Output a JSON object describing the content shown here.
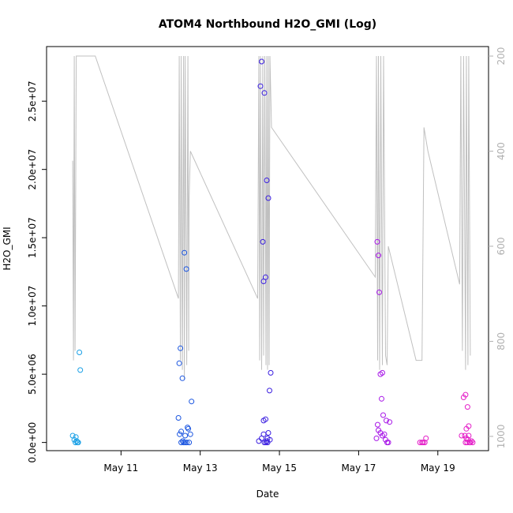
{
  "chart_data": {
    "type": "scatter",
    "title": "ATOM4 Northbound H2O_GMI (Log)",
    "xlabel": "Date",
    "ylabel": "H2O_GMI",
    "x_ticks": [
      {
        "day": 11,
        "label": "May 11"
      },
      {
        "day": 13,
        "label": "May 13"
      },
      {
        "day": 15,
        "label": "May 15"
      },
      {
        "day": 17,
        "label": "May 17"
      },
      {
        "day": 19,
        "label": "May 19"
      }
    ],
    "xlim": [
      9.12,
      20.28
    ],
    "ylim": [
      -600000,
      29000000
    ],
    "y_ticks": [
      {
        "value": 0,
        "label": "0.0e+00"
      },
      {
        "value": 5000000,
        "label": "5.0e+06"
      },
      {
        "value": 10000000,
        "label": "1.0e+07"
      },
      {
        "value": 15000000,
        "label": "1.5e+07"
      },
      {
        "value": 20000000,
        "label": "2.0e+07"
      },
      {
        "value": 25000000,
        "label": "2.5e+07"
      }
    ],
    "y2_lim": [
      1030,
      180
    ],
    "y2_ticks": [
      {
        "value": 200,
        "label": "200"
      },
      {
        "value": 400,
        "label": "400"
      },
      {
        "value": 600,
        "label": "600"
      },
      {
        "value": 800,
        "label": "800"
      },
      {
        "value": 1000,
        "label": "1000"
      }
    ],
    "grid": false,
    "series": [
      {
        "color": "#1aa0e6",
        "points": [
          [
            9.78,
            500000
          ],
          [
            9.82,
            200000
          ],
          [
            9.85,
            0
          ],
          [
            9.86,
            400000
          ],
          [
            9.88,
            100000
          ],
          [
            9.9,
            0
          ],
          [
            9.92,
            0
          ],
          [
            9.95,
            6600000
          ],
          [
            9.97,
            5300000
          ]
        ]
      },
      {
        "color": "#1a55e0",
        "points": [
          [
            12.45,
            1800000
          ],
          [
            12.47,
            5800000
          ],
          [
            12.5,
            6900000
          ],
          [
            12.52,
            0
          ],
          [
            12.55,
            4700000
          ],
          [
            12.58,
            0
          ],
          [
            12.6,
            13900000
          ],
          [
            12.62,
            500000
          ],
          [
            12.65,
            12700000
          ],
          [
            12.68,
            1100000
          ],
          [
            12.72,
            0
          ],
          [
            12.75,
            600000
          ],
          [
            12.78,
            3000000
          ],
          [
            12.48,
            600000
          ],
          [
            12.52,
            800000
          ],
          [
            12.56,
            100000
          ],
          [
            12.7,
            1000000
          ],
          [
            12.62,
            0
          ],
          [
            12.66,
            0
          ]
        ]
      },
      {
        "color": "#3a1ee0",
        "points": [
          [
            14.48,
            100000
          ],
          [
            14.52,
            26100000
          ],
          [
            14.55,
            27900000
          ],
          [
            14.58,
            14700000
          ],
          [
            14.6,
            11800000
          ],
          [
            14.62,
            25600000
          ],
          [
            14.65,
            12100000
          ],
          [
            14.68,
            19200000
          ],
          [
            14.7,
            0
          ],
          [
            14.72,
            17900000
          ],
          [
            14.75,
            3800000
          ],
          [
            14.78,
            5100000
          ],
          [
            14.6,
            1600000
          ],
          [
            14.65,
            1700000
          ],
          [
            14.55,
            300000
          ],
          [
            14.6,
            600000
          ],
          [
            14.68,
            100000
          ],
          [
            14.72,
            700000
          ],
          [
            14.76,
            200000
          ],
          [
            14.62,
            0
          ],
          [
            14.66,
            0
          ],
          [
            14.7,
            300000
          ]
        ]
      },
      {
        "color": "#a818e8",
        "points": [
          [
            17.45,
            300000
          ],
          [
            17.47,
            14700000
          ],
          [
            17.5,
            13700000
          ],
          [
            17.52,
            11000000
          ],
          [
            17.55,
            5000000
          ],
          [
            17.58,
            3200000
          ],
          [
            17.6,
            5100000
          ],
          [
            17.62,
            2000000
          ],
          [
            17.48,
            1300000
          ],
          [
            17.5,
            900000
          ],
          [
            17.55,
            700000
          ],
          [
            17.6,
            500000
          ],
          [
            17.65,
            600000
          ],
          [
            17.68,
            200000
          ],
          [
            17.7,
            1600000
          ],
          [
            17.75,
            0
          ],
          [
            17.78,
            1500000
          ],
          [
            17.72,
            0
          ]
        ]
      },
      {
        "color": "#e41ec8",
        "points": [
          [
            18.55,
            0
          ],
          [
            18.6,
            0
          ],
          [
            18.63,
            0
          ],
          [
            18.67,
            0
          ],
          [
            18.7,
            300000
          ],
          [
            19.6,
            500000
          ],
          [
            19.65,
            3300000
          ],
          [
            19.7,
            3500000
          ],
          [
            19.72,
            1000000
          ],
          [
            19.75,
            2600000
          ],
          [
            19.78,
            1200000
          ],
          [
            19.68,
            500000
          ],
          [
            19.72,
            300000
          ],
          [
            19.76,
            200000
          ],
          [
            19.8,
            0
          ],
          [
            19.82,
            0
          ],
          [
            19.85,
            100000
          ],
          [
            19.7,
            0
          ],
          [
            19.74,
            0
          ],
          [
            19.78,
            500000
          ],
          [
            19.88,
            0
          ]
        ]
      }
    ],
    "pressure_trace": {
      "color": "#c0c0c0",
      "points": [
        [
          9.78,
          420
        ],
        [
          9.8,
          840
        ],
        [
          9.82,
          200
        ],
        [
          9.84,
          820
        ],
        [
          9.87,
          200
        ],
        [
          9.9,
          200
        ],
        [
          10.35,
          200
        ],
        [
          12.45,
          710
        ],
        [
          12.47,
          200
        ],
        [
          12.5,
          840
        ],
        [
          12.52,
          200
        ],
        [
          12.55,
          860
        ],
        [
          12.58,
          200
        ],
        [
          12.6,
          880
        ],
        [
          12.62,
          200
        ],
        [
          12.66,
          850
        ],
        [
          12.69,
          200
        ],
        [
          12.71,
          820
        ],
        [
          12.72,
          500
        ],
        [
          12.75,
          400
        ],
        [
          14.45,
          710
        ],
        [
          14.48,
          200
        ],
        [
          14.5,
          840
        ],
        [
          14.52,
          200
        ],
        [
          14.55,
          860
        ],
        [
          14.58,
          200
        ],
        [
          14.6,
          830
        ],
        [
          14.63,
          200
        ],
        [
          14.66,
          850
        ],
        [
          14.68,
          200
        ],
        [
          14.7,
          860
        ],
        [
          14.72,
          200
        ],
        [
          14.74,
          850
        ],
        [
          14.76,
          200
        ],
        [
          14.8,
          350
        ],
        [
          17.42,
          665
        ],
        [
          17.45,
          200
        ],
        [
          17.48,
          840
        ],
        [
          17.5,
          200
        ],
        [
          17.53,
          860
        ],
        [
          17.56,
          200
        ],
        [
          17.6,
          850
        ],
        [
          17.63,
          200
        ],
        [
          17.68,
          830
        ],
        [
          17.72,
          850
        ],
        [
          17.75,
          600
        ],
        [
          18.45,
          840
        ],
        [
          18.6,
          840
        ],
        [
          18.65,
          350
        ],
        [
          18.75,
          400
        ],
        [
          19.55,
          680
        ],
        [
          19.58,
          200
        ],
        [
          19.62,
          820
        ],
        [
          19.65,
          200
        ],
        [
          19.7,
          860
        ],
        [
          19.72,
          200
        ],
        [
          19.76,
          850
        ],
        [
          19.78,
          200
        ],
        [
          19.82,
          830
        ]
      ]
    }
  }
}
